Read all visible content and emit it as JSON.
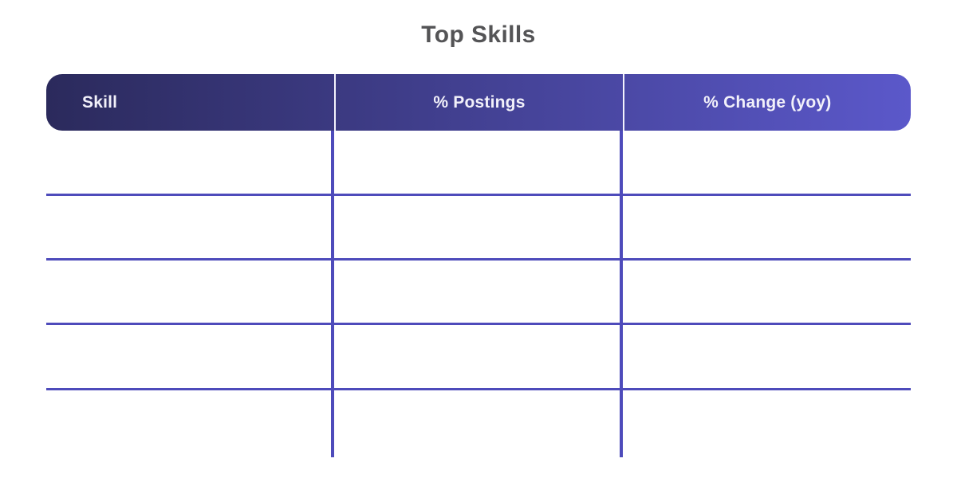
{
  "page": {
    "title": "Top Skills",
    "background": "#ffffff"
  },
  "chart_data": {
    "type": "table",
    "title": "Top Skills",
    "columns": [
      "Skill",
      "% Postings",
      "% Change (yoy)"
    ],
    "rows": [
      [
        "",
        "",
        ""
      ],
      [
        "",
        "",
        ""
      ],
      [
        "",
        "",
        ""
      ],
      [
        "",
        "",
        ""
      ],
      [
        "",
        "",
        ""
      ]
    ],
    "layout": {
      "header_align": [
        "left",
        "center",
        "center"
      ],
      "grid": "horizontal-and-vertical-lines",
      "legend": "none"
    }
  },
  "colors": {
    "background": "#ffffff",
    "title_text": "#545456",
    "header_gradient_start": "#2b2a5c",
    "header_gradient_end": "#5b58ca",
    "header_text": "#f2f1fa",
    "header_divider": "#f4f3fd",
    "grid_line": "#4e4bbb"
  }
}
